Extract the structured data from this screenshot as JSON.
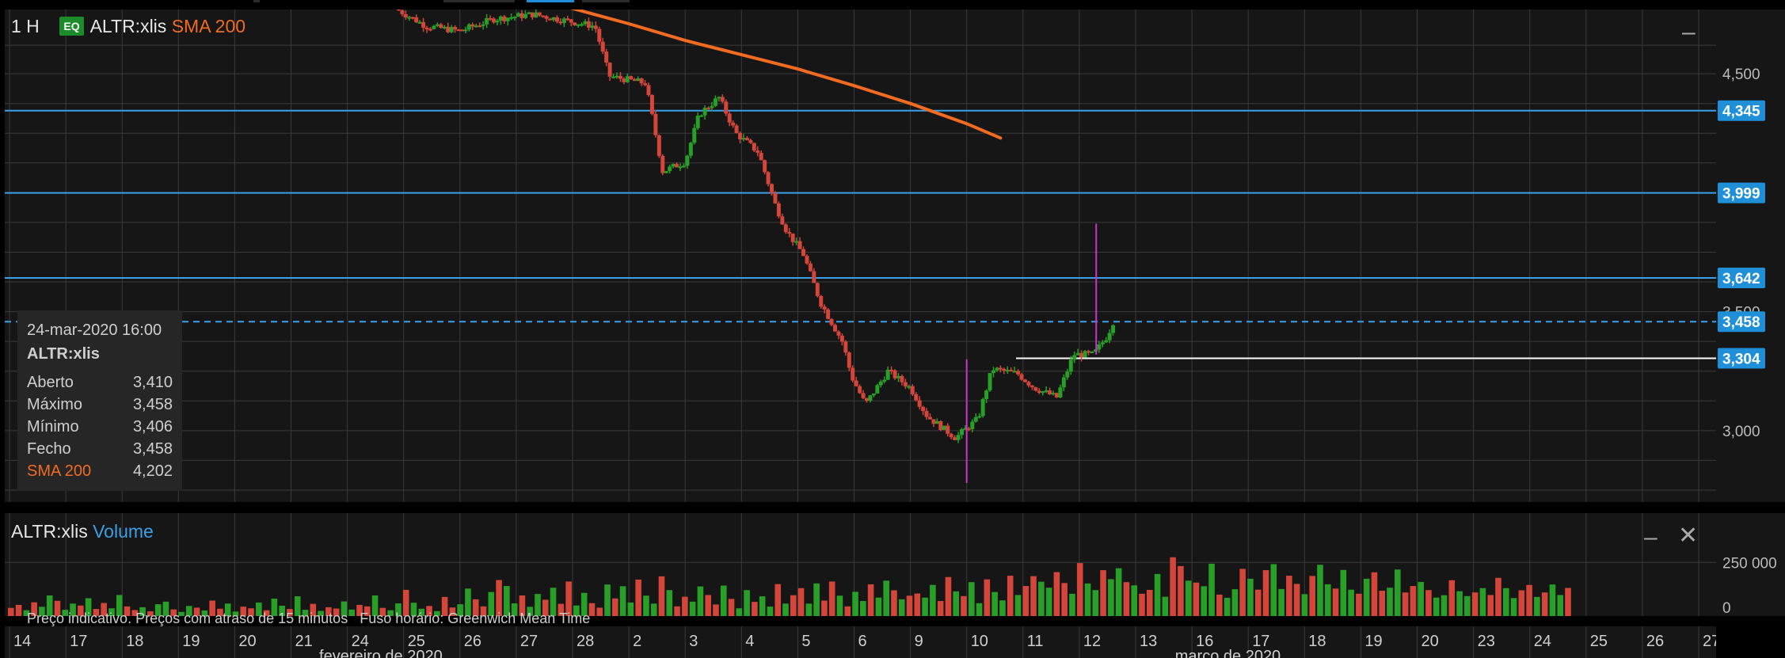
{
  "header": {
    "interval": "1 H",
    "badge": "EQ",
    "symbol": "ALTR:xlis",
    "study": "SMA 200"
  },
  "volume_header": {
    "symbol": "ALTR:xlis",
    "study": "Volume"
  },
  "tooltip": {
    "datetime": "24-mar-2020 16:00",
    "symbol": "ALTR:xlis",
    "rows": [
      {
        "label": "Aberto",
        "value": "3,410"
      },
      {
        "label": "Máximo",
        "value": "3,458"
      },
      {
        "label": "Mínimo",
        "value": "3,406"
      },
      {
        "label": "Fecho",
        "value": "3,458"
      },
      {
        "label": "SMA 200",
        "value": "4,202"
      }
    ]
  },
  "footer_note": "Preço indicativo. Preços com atraso de 15 minutos   Fuso horário: Greenwich Mean Time",
  "colors": {
    "up": "#28a028",
    "down": "#d4453a",
    "sma": "#f26b21",
    "level": "#3aa0e8",
    "accent": "#1f8fd8",
    "magenta": "#cc33cc",
    "badge": "#1c8c2a"
  },
  "icons": {
    "minimize": "minimize-icon",
    "close": "close-icon"
  },
  "chart_data": [
    {
      "type": "candlestick",
      "title": "ALTR:xlis",
      "ylim": [
        2700,
        4770
      ],
      "y_ticks": [
        "4,500",
        "3,000"
      ],
      "y_ticks_partial": [
        "3,500"
      ],
      "x_ticks": [
        "14",
        "17",
        "18",
        "19",
        "20",
        "21",
        "24",
        "25",
        "26",
        "27",
        "28",
        "2",
        "3",
        "4",
        "5",
        "6",
        "9",
        "10",
        "11",
        "12",
        "13",
        "16",
        "17",
        "18",
        "19",
        "20",
        "23",
        "24",
        "25",
        "26",
        "27"
      ],
      "x_month_labels": [
        "fevereiro de 2020",
        "março de 2020"
      ],
      "level_lines": [
        {
          "label": "4,345",
          "value": 4345,
          "style": "solid",
          "color": "#3aa0e8"
        },
        {
          "label": "3,999",
          "value": 3999,
          "style": "solid",
          "color": "#3aa0e8"
        },
        {
          "label": "3,642",
          "value": 3642,
          "style": "solid",
          "color": "#3aa0e8"
        },
        {
          "label": "3,458",
          "value": 3458,
          "style": "dashed",
          "color": "#3aa0e8"
        },
        {
          "label": "3,304",
          "value": 3304,
          "style": "solid",
          "color": "#ffffff"
        }
      ],
      "series": [
        {
          "name": "SMA 200",
          "type": "line",
          "points": [
            [
              9.6,
              4800
            ],
            [
              11.0,
              4710
            ],
            [
              12.0,
              4640
            ],
            [
              13.0,
              4580
            ],
            [
              14.0,
              4520
            ],
            [
              15.0,
              4450
            ],
            [
              16.0,
              4375
            ],
            [
              17.0,
              4290
            ],
            [
              17.6,
              4230
            ]
          ]
        }
      ],
      "price_path": [
        [
          6.85,
          4775
        ],
        [
          7.4,
          4700
        ],
        [
          8.0,
          4680
        ],
        [
          8.6,
          4730
        ],
        [
          9.3,
          4750
        ],
        [
          10.4,
          4700
        ],
        [
          10.65,
          4490
        ],
        [
          11.3,
          4460
        ],
        [
          11.6,
          4090
        ],
        [
          12.0,
          4130
        ],
        [
          12.25,
          4330
        ],
        [
          12.6,
          4400
        ],
        [
          12.9,
          4250
        ],
        [
          13.3,
          4170
        ],
        [
          13.6,
          3950
        ],
        [
          13.8,
          3840
        ],
        [
          14.1,
          3740
        ],
        [
          14.4,
          3540
        ],
        [
          14.8,
          3370
        ],
        [
          14.95,
          3230
        ],
        [
          15.2,
          3110
        ],
        [
          15.6,
          3250
        ],
        [
          16.0,
          3180
        ],
        [
          16.3,
          3060
        ],
        [
          16.8,
          2970
        ],
        [
          17.2,
          3050
        ],
        [
          17.45,
          3260
        ],
        [
          17.9,
          3240
        ],
        [
          18.2,
          3180
        ],
        [
          18.6,
          3140
        ],
        [
          18.9,
          3320
        ],
        [
          19.25,
          3320
        ],
        [
          19.5,
          3400
        ],
        [
          19.6,
          3458
        ]
      ],
      "spikes": [
        {
          "x": 17.0,
          "high": 3300,
          "low": 2780,
          "color": "#cc33cc"
        },
        {
          "x": 19.3,
          "high": 3870,
          "low": 3320,
          "color": "#cc33cc"
        }
      ]
    },
    {
      "type": "bar",
      "title": "Volume",
      "y_ticks": [
        "250 000",
        "0"
      ],
      "ylim": [
        0,
        480000
      ],
      "values": [
        38000,
        52000,
        27000,
        64000,
        43000,
        96000,
        71000,
        29000,
        58000,
        49000,
        83000,
        33000,
        61000,
        36000,
        98000,
        45000,
        28000,
        41000,
        22000,
        55000,
        67000,
        31000,
        19000,
        47000,
        39000,
        26000,
        72000,
        34000,
        58000,
        21000,
        44000,
        36000,
        63000,
        27000,
        81000,
        48000,
        33000,
        92000,
        29000,
        57000,
        24000,
        41000,
        35000,
        68000,
        30000,
        52000,
        45000,
        96000,
        38000,
        27000,
        59000,
        122000,
        62000,
        34000,
        47000,
        23000,
        89000,
        40000,
        55000,
        128000,
        78000,
        45000,
        112000,
        168000,
        140000,
        59000,
        96000,
        43000,
        103000,
        76000,
        132000,
        57000,
        161000,
        49000,
        108000,
        60000,
        39000,
        147000,
        82000,
        139000,
        63000,
        170000,
        95000,
        58000,
        185000,
        121000,
        45000,
        90000,
        67000,
        138000,
        98000,
        54000,
        142000,
        80000,
        36000,
        121000,
        66000,
        92000,
        44000,
        149000,
        58000,
        97000,
        130000,
        58000,
        152000,
        72000,
        161000,
        95000,
        45000,
        113000,
        70000,
        148000,
        86000,
        165000,
        120000,
        78000,
        95000,
        105000,
        86000,
        145000,
        70000,
        182000,
        115000,
        93000,
        158000,
        60000,
        171000,
        112000,
        73000,
        188000,
        98000,
        140000,
        186000,
        160000,
        132000,
        205000,
        154000,
        104000,
        247000,
        152000,
        121000,
        214000,
        172000,
        223000,
        158000,
        143000,
        104000,
        122000,
        196000,
        90000,
        274000,
        233000,
        165000,
        156000,
        139000,
        244000,
        100000,
        85000,
        125000,
        220000,
        174000,
        123000,
        214000,
        242000,
        126000,
        188000,
        150000,
        102000,
        187000,
        239000,
        148000,
        128000,
        215000,
        123000,
        104000,
        174000,
        204000,
        118000,
        132000,
        217000,
        110000,
        140000,
        159000,
        121000,
        86000,
        97000,
        167000,
        116000,
        93000,
        110000,
        130000,
        98000,
        178000,
        130000,
        84000,
        120000,
        145000,
        89000,
        110000,
        147000,
        98000,
        131000
      ]
    }
  ]
}
